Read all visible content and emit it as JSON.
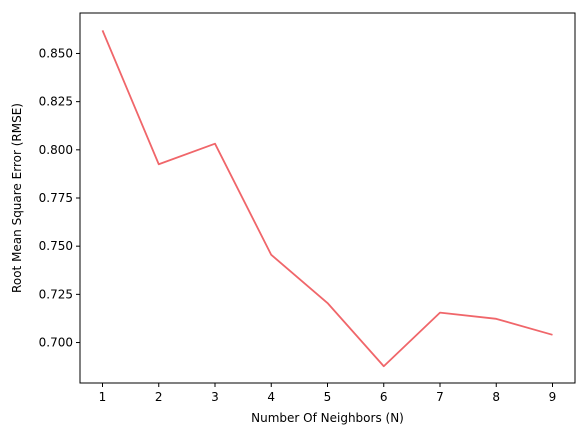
{
  "chart_data": {
    "type": "line",
    "title": "",
    "xlabel": "Number Of Neighbors (N)",
    "ylabel": "Root Mean Square Error (RMSE)",
    "x": [
      1,
      2,
      3,
      4,
      5,
      6,
      7,
      8,
      9
    ],
    "series": [
      {
        "values": [
          0.862,
          0.7925,
          0.8032,
          0.7455,
          0.7205,
          0.6877,
          0.7155,
          0.7123,
          0.704
        ],
        "color": "#f0666a"
      }
    ],
    "xlim": [
      0.6,
      9.4
    ],
    "ylim": [
      0.679,
      0.871
    ],
    "xticks": [
      1,
      2,
      3,
      4,
      5,
      6,
      7,
      8,
      9
    ],
    "xtick_labels": [
      "1",
      "2",
      "3",
      "4",
      "5",
      "6",
      "7",
      "8",
      "9"
    ],
    "yticks": [
      0.7,
      0.725,
      0.75,
      0.775,
      0.8,
      0.825,
      0.85
    ],
    "ytick_labels": [
      "0.700",
      "0.725",
      "0.750",
      "0.775",
      "0.800",
      "0.825",
      "0.850"
    ],
    "grid": false,
    "legend": "none"
  }
}
